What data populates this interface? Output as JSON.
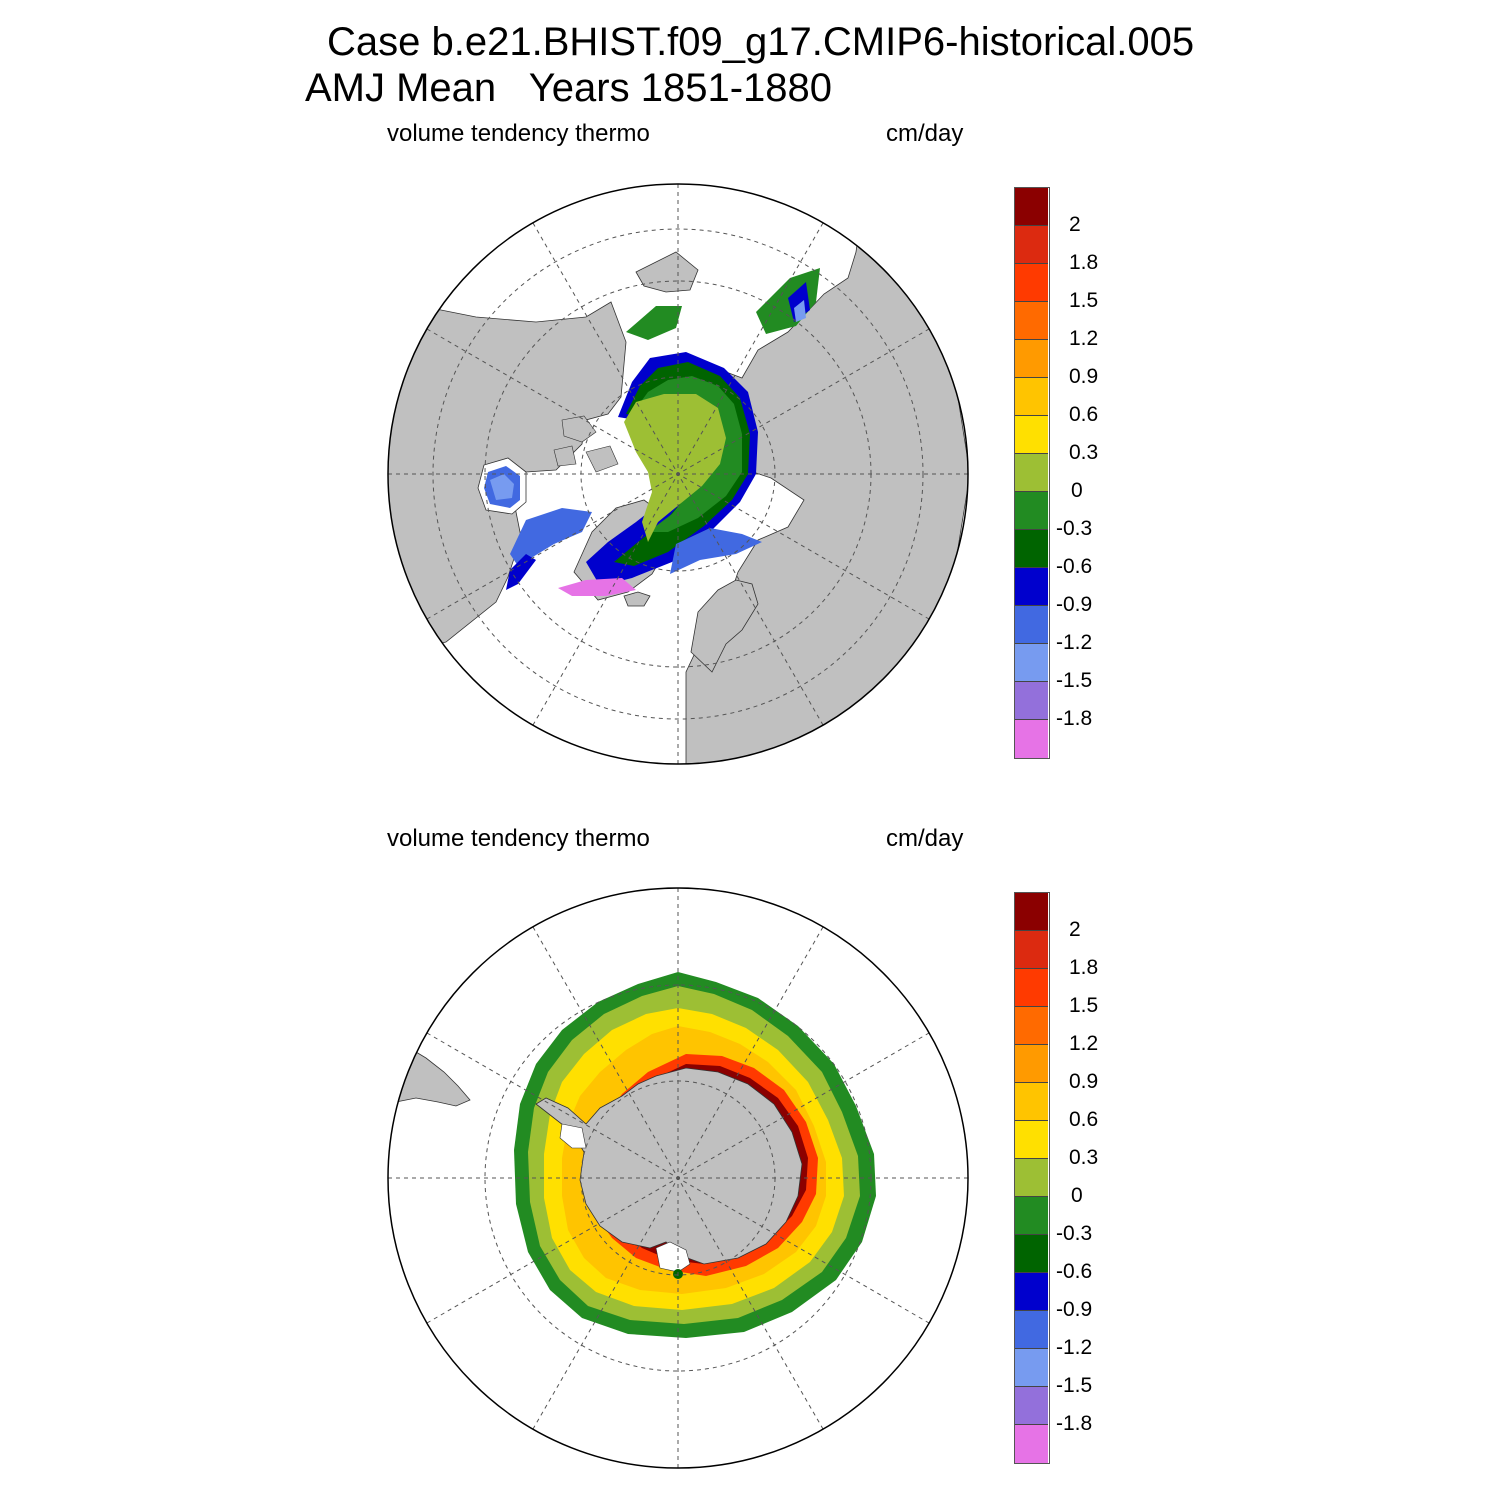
{
  "title": {
    "line1": "Case b.e21.BHIST.f09_g17.CMIP6-historical.005",
    "line2": "AMJ Mean   Years 1851-1880"
  },
  "panels": [
    {
      "id": "north",
      "hemisphere": "Northern Hemisphere (Arctic, polar stereographic)",
      "left_label": "volume tendency thermo",
      "right_label": "cm/day"
    },
    {
      "id": "south",
      "hemisphere": "Southern Hemisphere (Antarctic, polar stereographic)",
      "left_label": "volume tendency thermo",
      "right_label": "cm/day"
    }
  ],
  "colorbar": {
    "levels": [
      "2",
      "1.8",
      "1.5",
      "1.2",
      "0.9",
      "0.6",
      "0.3",
      "0",
      "-0.3",
      "-0.6",
      "-0.9",
      "-1.2",
      "-1.5",
      "-1.8"
    ],
    "colors": [
      "#8b0000",
      "#dc2a10",
      "#ff3a00",
      "#ff6a00",
      "#ff9a00",
      "#ffc400",
      "#ffe000",
      "#9dbf34",
      "#228b22",
      "#006400",
      "#0000cd",
      "#4169e1",
      "#779bf0",
      "#9370db",
      "#e673e6"
    ]
  },
  "map_colors": {
    "land": "#c0c0c0",
    "no_ice": "#ffffff",
    "grid": "#555555"
  }
}
